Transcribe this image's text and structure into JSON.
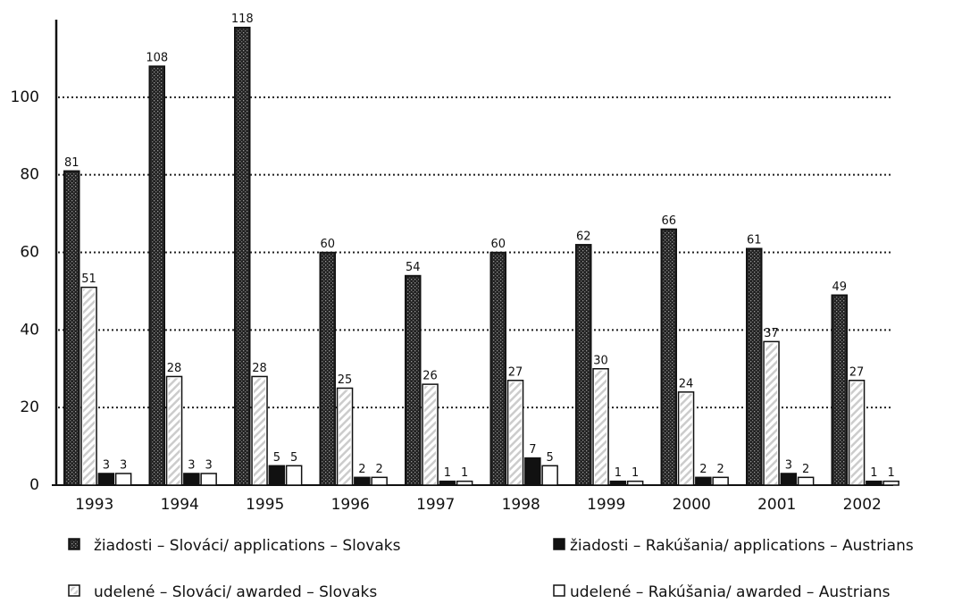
{
  "chart_data": {
    "type": "bar",
    "categories": [
      "1993",
      "1994",
      "1995",
      "1996",
      "1997",
      "1998",
      "1999",
      "2000",
      "2001",
      "2002"
    ],
    "series": [
      {
        "name": "žiadosti – Slováci/ applications – Slovaks",
        "color": "#222222",
        "values": [
          81,
          108,
          118,
          60,
          54,
          60,
          62,
          66,
          61,
          49
        ]
      },
      {
        "name": "udelené – Slováci/ awarded – Slovaks",
        "color": "#ffffff",
        "values": [
          51,
          28,
          28,
          25,
          26,
          27,
          30,
          24,
          37,
          27
        ]
      },
      {
        "name": "žiadosti – Rakúšania/ applications – Austrians",
        "color": "#111111",
        "values": [
          3,
          3,
          5,
          2,
          1,
          7,
          1,
          2,
          3,
          1
        ]
      },
      {
        "name": "udelené – Rakúšania/ awarded – Austrians",
        "color": "#ffffff",
        "values": [
          3,
          3,
          5,
          2,
          1,
          5,
          1,
          2,
          2,
          1
        ]
      }
    ],
    "ylim": [
      0,
      120
    ],
    "yticks": [
      0,
      20,
      40,
      60,
      80,
      100
    ],
    "grid": true
  }
}
